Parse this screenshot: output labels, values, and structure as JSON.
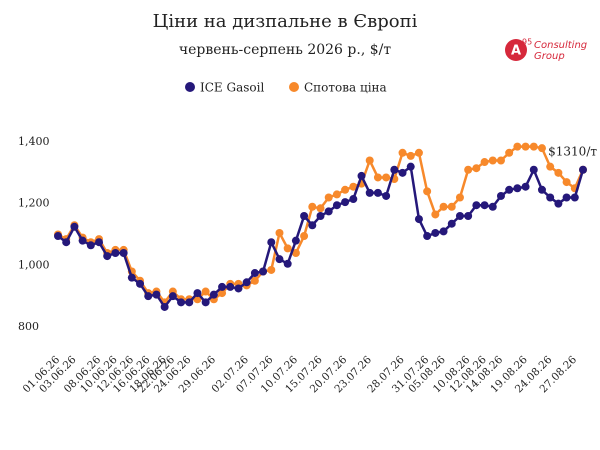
{
  "chart_data": {
    "type": "line",
    "title": "Ціни на дизпальне в Європі",
    "subtitle": "червень-серпень 2026 р., $/т",
    "logo": {
      "mark": "A",
      "sup": "95",
      "line1": "Consulting",
      "line2": "Group"
    },
    "annotation": "$1310/т",
    "categories": [
      "01.06.26",
      null,
      "03.06.26",
      null,
      null,
      "08.06.26",
      null,
      "10.06.26",
      null,
      "12.06.26",
      null,
      "16.06.26",
      null,
      "18.06.26",
      "22.06.26",
      null,
      "24.06.26",
      null,
      null,
      "29.06.26",
      null,
      null,
      null,
      "02.07.26",
      null,
      null,
      "07.07.26",
      null,
      null,
      "10.07.26",
      null,
      null,
      "15.07.26",
      null,
      null,
      "20.07.26",
      null,
      null,
      "23.07.26",
      null,
      null,
      null,
      "28.07.26",
      null,
      null,
      "31.07.26",
      null,
      "05.08.26",
      null,
      null,
      "10.08.26",
      null,
      "12.08.26",
      null,
      "14.08.26",
      null,
      null,
      "19.08.26",
      null,
      null,
      "24.08.26",
      null,
      null,
      "27.08.26",
      null
    ],
    "series": [
      {
        "name": "ICE Gasoil",
        "color": "#25187a",
        "values": [
          1095,
          1075,
          1125,
          1080,
          1065,
          1075,
          1030,
          1040,
          1040,
          960,
          940,
          900,
          905,
          865,
          900,
          880,
          880,
          910,
          880,
          905,
          930,
          930,
          925,
          945,
          975,
          980,
          1075,
          1020,
          1005,
          1080,
          1160,
          1130,
          1160,
          1175,
          1195,
          1205,
          1215,
          1290,
          1235,
          1235,
          1225,
          1310,
          1300,
          1320,
          1150,
          1095,
          1105,
          1110,
          1135,
          1160,
          1160,
          1195,
          1195,
          1190,
          1225,
          1245,
          1250,
          1255,
          1310,
          1245,
          1220,
          1200,
          1220,
          1220,
          1310
        ]
      },
      {
        "name": "Спотова ціна",
        "color": "#f7892b",
        "values": [
          1100,
          1085,
          1130,
          1090,
          1075,
          1085,
          1040,
          1050,
          1050,
          980,
          950,
          910,
          915,
          880,
          915,
          890,
          890,
          890,
          915,
          890,
          910,
          940,
          940,
          935,
          950,
          980,
          985,
          1105,
          1055,
          1040,
          1095,
          1190,
          1185,
          1220,
          1230,
          1245,
          1255,
          1265,
          1340,
          1285,
          1285,
          1280,
          1365,
          1355,
          1365,
          1240,
          1165,
          1190,
          1190,
          1220,
          1310,
          1315,
          1335,
          1340,
          1340,
          1365,
          1385,
          1385,
          1385,
          1380,
          1320,
          1300,
          1270,
          1250,
          1310
        ]
      }
    ],
    "ylim": [
      750,
      1450
    ],
    "yticks": [
      {
        "value": 800,
        "label": "800"
      },
      {
        "value": 1000,
        "label": "1,000"
      },
      {
        "value": 1200,
        "label": "1,200"
      },
      {
        "value": 1400,
        "label": "1,400"
      }
    ],
    "grid": false,
    "legend": "top"
  }
}
